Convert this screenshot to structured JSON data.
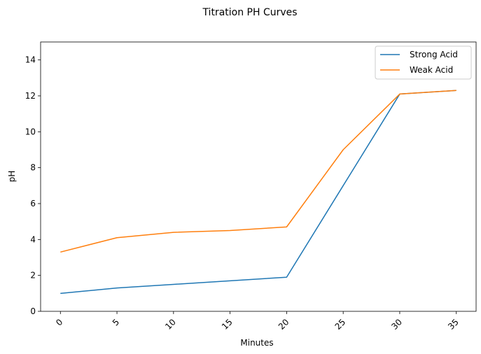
{
  "chart_data": {
    "type": "line",
    "title": "Titration PH Curves",
    "xlabel": "Minutes",
    "ylabel": "pH",
    "x": [
      0,
      5,
      10,
      15,
      20,
      25,
      30,
      35
    ],
    "x_tick_labels": [
      "0",
      "5",
      "10",
      "15",
      "20",
      "25",
      "30",
      "35"
    ],
    "y_ticks": [
      0,
      2,
      4,
      6,
      8,
      10,
      12,
      14
    ],
    "y_tick_labels": [
      "0",
      "2",
      "4",
      "6",
      "8",
      "10",
      "12",
      "14"
    ],
    "xlim": [
      -1.75,
      36.75
    ],
    "ylim": [
      0,
      15
    ],
    "grid": false,
    "legend_position": "top-right",
    "series": [
      {
        "name": "Strong Acid",
        "color": "#1f77b4",
        "values": [
          1.0,
          1.3,
          1.5,
          1.7,
          1.9,
          7.0,
          12.1,
          12.3
        ]
      },
      {
        "name": "Weak Acid",
        "color": "#ff7f0e",
        "values": [
          3.3,
          4.1,
          4.4,
          4.5,
          4.7,
          9.0,
          12.1,
          12.3
        ]
      }
    ]
  }
}
